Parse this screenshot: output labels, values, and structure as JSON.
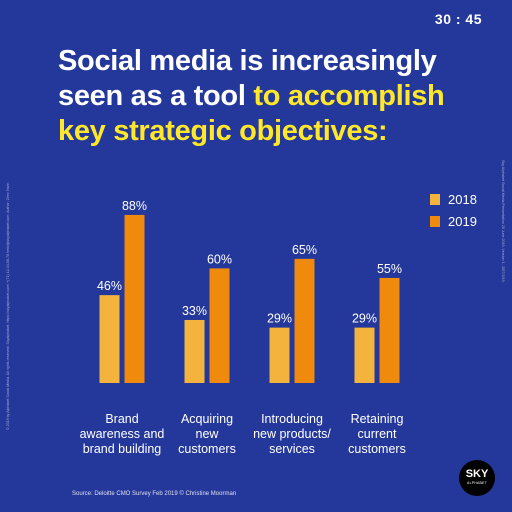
{
  "timer": "30 : 45",
  "headline": {
    "line1": "Social media is increasingly",
    "line2_plain": "seen as a tool ",
    "line2_highlight": "to accomplish",
    "line3": "key strategic objectives:"
  },
  "colors": {
    "background": "#24379a",
    "series_2018": "#f3b33d",
    "series_2019": "#ef8a0d",
    "highlight": "#ffe82a"
  },
  "source": "Source: Deloitte CMO Survey Feb 2019 © Christine Moorman",
  "side_text_left": "© 2019 by Alphabet Social Media. All rights reserved. Skyalphabet. https://skyalphabet.com/ +(71) 12-34-56-78 hello@skyalphabet.com. Author: Zeev Yavin",
  "side_text_right": "Sky Alphabet Social Media Presentation 28 June 2019, Version 1 - DE7/2/19",
  "logo": {
    "main": "SKY",
    "sub": "ALPHABET"
  },
  "chart_data": {
    "type": "bar",
    "categories": [
      [
        "Brand",
        "awareness and",
        "brand building"
      ],
      [
        "Acquiring",
        "new",
        "customers"
      ],
      [
        "Introducing",
        "new products/",
        "services"
      ],
      [
        "Retaining",
        "current",
        "customers"
      ]
    ],
    "series": [
      {
        "name": "2018",
        "values": [
          46,
          33,
          29,
          29
        ],
        "labels": [
          "46%",
          "33%",
          "29%",
          "29%"
        ]
      },
      {
        "name": "2019",
        "values": [
          88,
          60,
          65,
          55
        ],
        "labels": [
          "88%",
          "60%",
          "65%",
          "55%"
        ]
      }
    ],
    "legend_position": "top-right",
    "ylim": [
      0,
      100
    ],
    "grid": false
  }
}
